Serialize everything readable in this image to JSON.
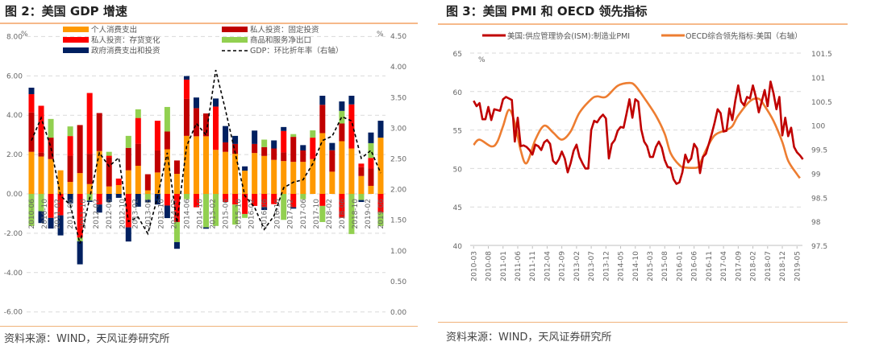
{
  "left_panel": {
    "title": "图 2：美国 GDP 增速",
    "source": "资料来源：WIND，天风证券研究所"
  },
  "right_panel": {
    "title": "图 3：美国 PMI 和 OECD 领先指标",
    "source": "资料来源：WIND，天风证券研究所"
  },
  "chart_data": [
    {
      "type": "bar",
      "stacked": true,
      "left_unit": "%",
      "right_unit": "%",
      "ylim": [
        -6,
        8
      ],
      "yticks": [
        "8.00",
        "6.00",
        "4.00",
        "2.00",
        "0.00",
        "-2.00",
        "-4.00",
        "-6.00"
      ],
      "y2lim": [
        0,
        4.5
      ],
      "y2ticks": [
        "4.50",
        "4.00",
        "3.50",
        "3.00",
        "2.50",
        "2.00",
        "1.50",
        "1.00",
        "0.50",
        "0.00"
      ],
      "grid": true,
      "legend_position": "top",
      "x_tick_labels": [
        "2010-06",
        "2010-10",
        "2011-02",
        "2011-06",
        "2011-10",
        "2012-02",
        "2012-06",
        "2012-10",
        "2013-02",
        "2013-06",
        "2013-10",
        "2014-02",
        "2014-06",
        "2014-10",
        "2015-02",
        "2015-06",
        "2015-10",
        "2016-02",
        "2016-06",
        "2016-10",
        "2017-02",
        "2017-06",
        "2017-10",
        "2018-02",
        "2018-06",
        "2018-10",
        "2019-02",
        "2019-06"
      ],
      "series": [
        {
          "name": "个人消费支出",
          "color": "#ff9900",
          "values": [
            2.14,
            1.9,
            1.77,
            1.2,
            0.61,
            1.06,
            0.5,
            2.18,
            0.38,
            0.45,
            1.2,
            1.43,
            0.18,
            1.09,
            2.27,
            1.02,
            2.95,
            2.93,
            2.93,
            2.24,
            2.14,
            2.04,
            1.18,
            2.08,
            1.93,
            1.73,
            1.67,
            1.63,
            1.63,
            1.77,
            3.09,
            1.13,
            2.68,
            2.31,
            0.91,
            0.41,
            2.86
          ]
        },
        {
          "name": "私人投资：固定投资",
          "color": "#c00000",
          "values": [
            2.0,
            0.2,
            1.09,
            0,
            1.33,
            2.44,
            1.54,
            1.93,
            1.46,
            0,
            1.14,
            1.12,
            0.82,
            1.12,
            0.9,
            0.68,
            1.88,
            1.43,
            1.16,
            0,
            0.48,
            0.5,
            0,
            0.46,
            0.45,
            0.58,
            0.44,
            1.27,
            0.58,
            0,
            1.44,
            1.09,
            0.9,
            0,
            0.45,
            0.88,
            0
          ]
        },
        {
          "name": "私人投资：存货变化",
          "color": "#ff0000",
          "values": [
            0.93,
            2.38,
            -1.22,
            -1.09,
            1.0,
            -2.22,
            3.09,
            -0.54,
            0.1,
            0.33,
            -1.7,
            1.31,
            0,
            1.51,
            -0.59,
            -1.43,
            0.98,
            -0.68,
            0,
            2.2,
            -0.41,
            -0.54,
            -1.02,
            -0.61,
            -0.68,
            -0.52,
            1.09,
            -0.68,
            0,
            1.09,
            -0.61,
            0,
            -1.22,
            2.24,
            0.18,
            0.54,
            -0.95
          ]
        },
        {
          "name": "商品和服务净出口",
          "color": "#92d050",
          "values": [
            -1.63,
            -0.88,
            0.95,
            0,
            0.49,
            -0.19,
            -0.34,
            0,
            0.2,
            0,
            0.61,
            0.44,
            -0.31,
            0,
            1.25,
            -1.02,
            -0.27,
            0,
            -1.7,
            -1.63,
            0,
            -1.02,
            -0.2,
            0,
            0.38,
            0,
            -1.32,
            0.14,
            -0.27,
            0.37,
            -0.82,
            0,
            0.64,
            -2.04,
            -0.31,
            0.75,
            -0.68
          ]
        },
        {
          "name": "政府消费支出和投资",
          "color": "#002060",
          "values": [
            0.33,
            -0.6,
            -0.54,
            -1.02,
            -0.48,
            -1.17,
            -0.07,
            -0.41,
            -0.41,
            -0.2,
            -0.72,
            -0.65,
            -0.12,
            -0.54,
            -0.64,
            -0.34,
            0.18,
            0.54,
            -0.07,
            0.41,
            0.83,
            0.41,
            0.22,
            0.68,
            -0.14,
            0.41,
            0.2,
            -0.07,
            0.27,
            0,
            0.46,
            0.37,
            0.48,
            0.44,
            -0.1,
            0.54,
            0.86
          ]
        }
      ],
      "line_series": {
        "name": "GDP：环比折年率（右轴）",
        "color": "#000000",
        "style": "dashed",
        "axis": "right",
        "values": [
          2.8,
          3.17,
          2.69,
          1.9,
          1.75,
          1.12,
          1.86,
          2.6,
          2.38,
          2.52,
          1.48,
          1.55,
          1.28,
          1.88,
          2.6,
          1.46,
          2.71,
          3.08,
          2.89,
          3.95,
          3.3,
          2.6,
          1.9,
          1.71,
          1.35,
          1.57,
          2.03,
          2.12,
          2.16,
          2.42,
          2.8,
          2.87,
          3.19,
          3.12,
          2.51,
          2.64,
          2.27
        ]
      }
    },
    {
      "type": "line",
      "left_unit": "%",
      "ylim": [
        40,
        65
      ],
      "yticks": [
        "65",
        "60",
        "55",
        "50",
        "45",
        "40"
      ],
      "y2lim": [
        97.5,
        101.5
      ],
      "y2ticks": [
        "101.5",
        "101",
        "100.5",
        "100",
        "99.5",
        "99",
        "98.5",
        "98",
        "97.5"
      ],
      "grid": true,
      "legend_position": "top",
      "x_tick_labels": [
        "2010-03",
        "2010-08",
        "2011-01",
        "2011-06",
        "2011-11",
        "2012-04",
        "2012-09",
        "2013-02",
        "2013-07",
        "2013-12",
        "2014-05",
        "2014-10",
        "2015-03",
        "2015-08",
        "2016-01",
        "2016-06",
        "2016-11",
        "2017-04",
        "2017-09",
        "2018-02",
        "2018-07",
        "2018-12",
        "2019-05"
      ],
      "series": [
        {
          "name": "美国:供应管理协会(ISM):制造业PMI",
          "color": "#c00000",
          "axis": "left",
          "start": "2010-03",
          "frequency": "monthly",
          "values": [
            58.8,
            58.1,
            58.5,
            56.4,
            56.4,
            58.0,
            56.3,
            57.7,
            57.6,
            57.5,
            59.0,
            59.3,
            59.1,
            58.9,
            53.5,
            56.6,
            52.9,
            53.0,
            52.8,
            52.4,
            51.8,
            53.1,
            52.9,
            52.4,
            53.4,
            53.7,
            53.2,
            51.0,
            50.6,
            51.2,
            52.2,
            51.3,
            49.5,
            50.7,
            52.3,
            53.1,
            51.5,
            50.7,
            50.0,
            50.0,
            55.0,
            56.2,
            56.0,
            56.6,
            57.0,
            56.5,
            51.3,
            53.2,
            53.7,
            54.9,
            55.4,
            55.3,
            57.1,
            59.0,
            56.6,
            59.0,
            58.7,
            55.1,
            53.5,
            52.9,
            51.5,
            51.5,
            52.8,
            53.5,
            52.7,
            51.1,
            50.2,
            50.1,
            48.6,
            48.0,
            48.2,
            49.5,
            51.8,
            50.8,
            51.3,
            53.2,
            52.6,
            49.4,
            51.5,
            51.9,
            53.2,
            54.5,
            56.0,
            57.7,
            57.2,
            54.8,
            54.9,
            57.8,
            56.3,
            58.8,
            60.8,
            58.7,
            58.2,
            59.3,
            59.1,
            60.8,
            59.3,
            57.3,
            58.7,
            60.2,
            58.1,
            61.3,
            59.8,
            57.7,
            59.3,
            54.3,
            56.6,
            54.2,
            55.3,
            52.8,
            52.1,
            51.7,
            51.2
          ]
        },
        {
          "name": "OECD综合领先指标:美国（右轴）",
          "color": "#ed7d31",
          "axis": "right",
          "points": [
            [
              "2010-03",
              99.59
            ],
            [
              "2010-05",
              99.7
            ],
            [
              "2010-09",
              99.56
            ],
            [
              "2010-11",
              99.65
            ],
            [
              "2011-01",
              99.98
            ],
            [
              "2011-03",
              100.32
            ],
            [
              "2011-05",
              100.05
            ],
            [
              "2011-07",
              99.48
            ],
            [
              "2011-09",
              99.21
            ],
            [
              "2011-12",
              99.7
            ],
            [
              "2012-03",
              99.99
            ],
            [
              "2012-06",
              99.85
            ],
            [
              "2012-09",
              99.7
            ],
            [
              "2012-12",
              99.87
            ],
            [
              "2013-03",
              100.26
            ],
            [
              "2013-07",
              100.54
            ],
            [
              "2013-09",
              100.6
            ],
            [
              "2013-12",
              100.59
            ],
            [
              "2014-04",
              100.82
            ],
            [
              "2014-08",
              100.88
            ],
            [
              "2014-10",
              100.82
            ],
            [
              "2015-01",
              100.57
            ],
            [
              "2015-05",
              100.2
            ],
            [
              "2015-08",
              99.82
            ],
            [
              "2015-10",
              99.42
            ],
            [
              "2016-01",
              99.17
            ],
            [
              "2016-03",
              99.12
            ],
            [
              "2016-07",
              99.12
            ],
            [
              "2016-08",
              99.2
            ],
            [
              "2016-10",
              99.48
            ],
            [
              "2017-01",
              99.79
            ],
            [
              "2017-05",
              99.9
            ],
            [
              "2017-07",
              99.98
            ],
            [
              "2017-09",
              100.2
            ],
            [
              "2018-01",
              100.5
            ],
            [
              "2018-04",
              100.55
            ],
            [
              "2018-06",
              100.4
            ],
            [
              "2018-09",
              100.09
            ],
            [
              "2018-12",
              99.65
            ],
            [
              "2019-02",
              99.26
            ],
            [
              "2019-05",
              98.98
            ],
            [
              "2019-06",
              98.9
            ]
          ]
        }
      ]
    }
  ]
}
